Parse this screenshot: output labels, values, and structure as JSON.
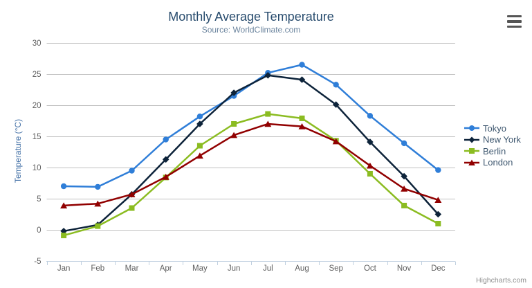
{
  "header": {
    "title": "Monthly Average Temperature",
    "subtitle": "Source: WorldClimate.com"
  },
  "export_menu": {
    "icon": "hamburger-menu-icon"
  },
  "credits": {
    "label": "Highcharts.com"
  },
  "chart_data": {
    "type": "line",
    "title": "Monthly Average Temperature",
    "subtitle": "Source: WorldClimate.com",
    "categories": [
      "Jan",
      "Feb",
      "Mar",
      "Apr",
      "May",
      "Jun",
      "Jul",
      "Aug",
      "Sep",
      "Oct",
      "Nov",
      "Dec"
    ],
    "xlabel": "",
    "ylabel": "Temperature (°C)",
    "ylim": [
      -5,
      30
    ],
    "yticks": [
      -5,
      0,
      5,
      10,
      15,
      20,
      25,
      30
    ],
    "grid": true,
    "legend_position": "right",
    "series": [
      {
        "name": "Tokyo",
        "color": "#2f7ed8",
        "marker": "circle",
        "values": [
          7.0,
          6.9,
          9.5,
          14.5,
          18.2,
          21.5,
          25.2,
          26.5,
          23.3,
          18.3,
          13.9,
          9.6
        ]
      },
      {
        "name": "New York",
        "color": "#0d233a",
        "marker": "diamond",
        "values": [
          -0.2,
          0.8,
          5.7,
          11.3,
          17.0,
          22.0,
          24.8,
          24.1,
          20.1,
          14.1,
          8.6,
          2.5
        ]
      },
      {
        "name": "Berlin",
        "color": "#8bbc21",
        "marker": "square",
        "values": [
          -0.9,
          0.6,
          3.5,
          8.4,
          13.5,
          17.0,
          18.6,
          17.9,
          14.3,
          9.0,
          3.9,
          1.0
        ]
      },
      {
        "name": "London",
        "color": "#910000",
        "marker": "triangle",
        "values": [
          3.9,
          4.2,
          5.7,
          8.5,
          11.9,
          15.2,
          17.0,
          16.6,
          14.2,
          10.3,
          6.6,
          4.8
        ]
      }
    ],
    "axis_colors": {
      "grid_line": "#c0c0c0",
      "axis_line": "#c0d0e0",
      "tick_label": "#606060",
      "y_axis_title": "#4572a7"
    }
  }
}
